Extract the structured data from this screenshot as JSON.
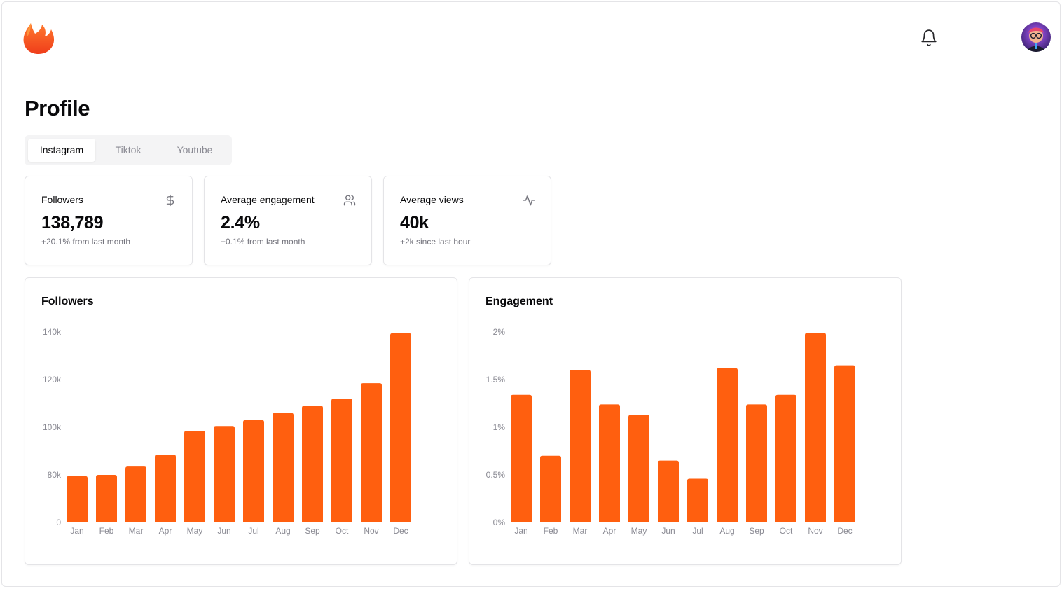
{
  "header": {
    "logo_icon": "flame-logo-icon",
    "notification_icon": "bell-icon",
    "avatar_icon": "user-avatar"
  },
  "page": {
    "title": "Profile"
  },
  "tabs": [
    {
      "label": "Instagram",
      "active": true
    },
    {
      "label": "Tiktok",
      "active": false
    },
    {
      "label": "Youtube",
      "active": false
    }
  ],
  "stats": [
    {
      "label": "Followers",
      "value": "138,789",
      "sub": "+20.1% from last month",
      "icon": "dollar-icon"
    },
    {
      "label": "Average engagement",
      "value": "2.4%",
      "sub": "+0.1% from last month",
      "icon": "users-icon"
    },
    {
      "label": "Average views",
      "value": "40k",
      "sub": "+2k since last hour",
      "icon": "activity-icon"
    }
  ],
  "colors": {
    "accent": "#ff5f0f",
    "border": "#e4e4e7",
    "muted": "#71717a"
  },
  "chart_data": [
    {
      "type": "bar",
      "title": "Followers",
      "categories": [
        "Jan",
        "Feb",
        "Mar",
        "Apr",
        "May",
        "Jun",
        "Jul",
        "Aug",
        "Sep",
        "Oct",
        "Nov",
        "Dec"
      ],
      "values": [
        78000,
        80000,
        83500,
        88500,
        98500,
        100500,
        103000,
        106000,
        109000,
        112000,
        118500,
        139500
      ],
      "yticks": [
        0,
        80000,
        100000,
        120000,
        140000
      ],
      "ytick_labels": [
        "0",
        "80k",
        "100k",
        "120k",
        "140k"
      ],
      "ylim": [
        0,
        140000
      ],
      "axis_break": true,
      "xlabel": "",
      "ylabel": ""
    },
    {
      "type": "bar",
      "title": "Engagement",
      "categories": [
        "Jan",
        "Feb",
        "Mar",
        "Apr",
        "May",
        "Jun",
        "Jul",
        "Aug",
        "Sep",
        "Oct",
        "Nov",
        "Dec"
      ],
      "values": [
        1.34,
        0.7,
        1.6,
        1.24,
        1.13,
        0.65,
        0.46,
        1.62,
        1.24,
        1.34,
        1.99,
        1.65
      ],
      "yticks": [
        0,
        0.5,
        1,
        1.5,
        2
      ],
      "ytick_labels": [
        "0%",
        "0.5%",
        "1%",
        "1.5%",
        "2%"
      ],
      "ylim": [
        0,
        2
      ],
      "axis_break": false,
      "xlabel": "",
      "ylabel": ""
    }
  ]
}
